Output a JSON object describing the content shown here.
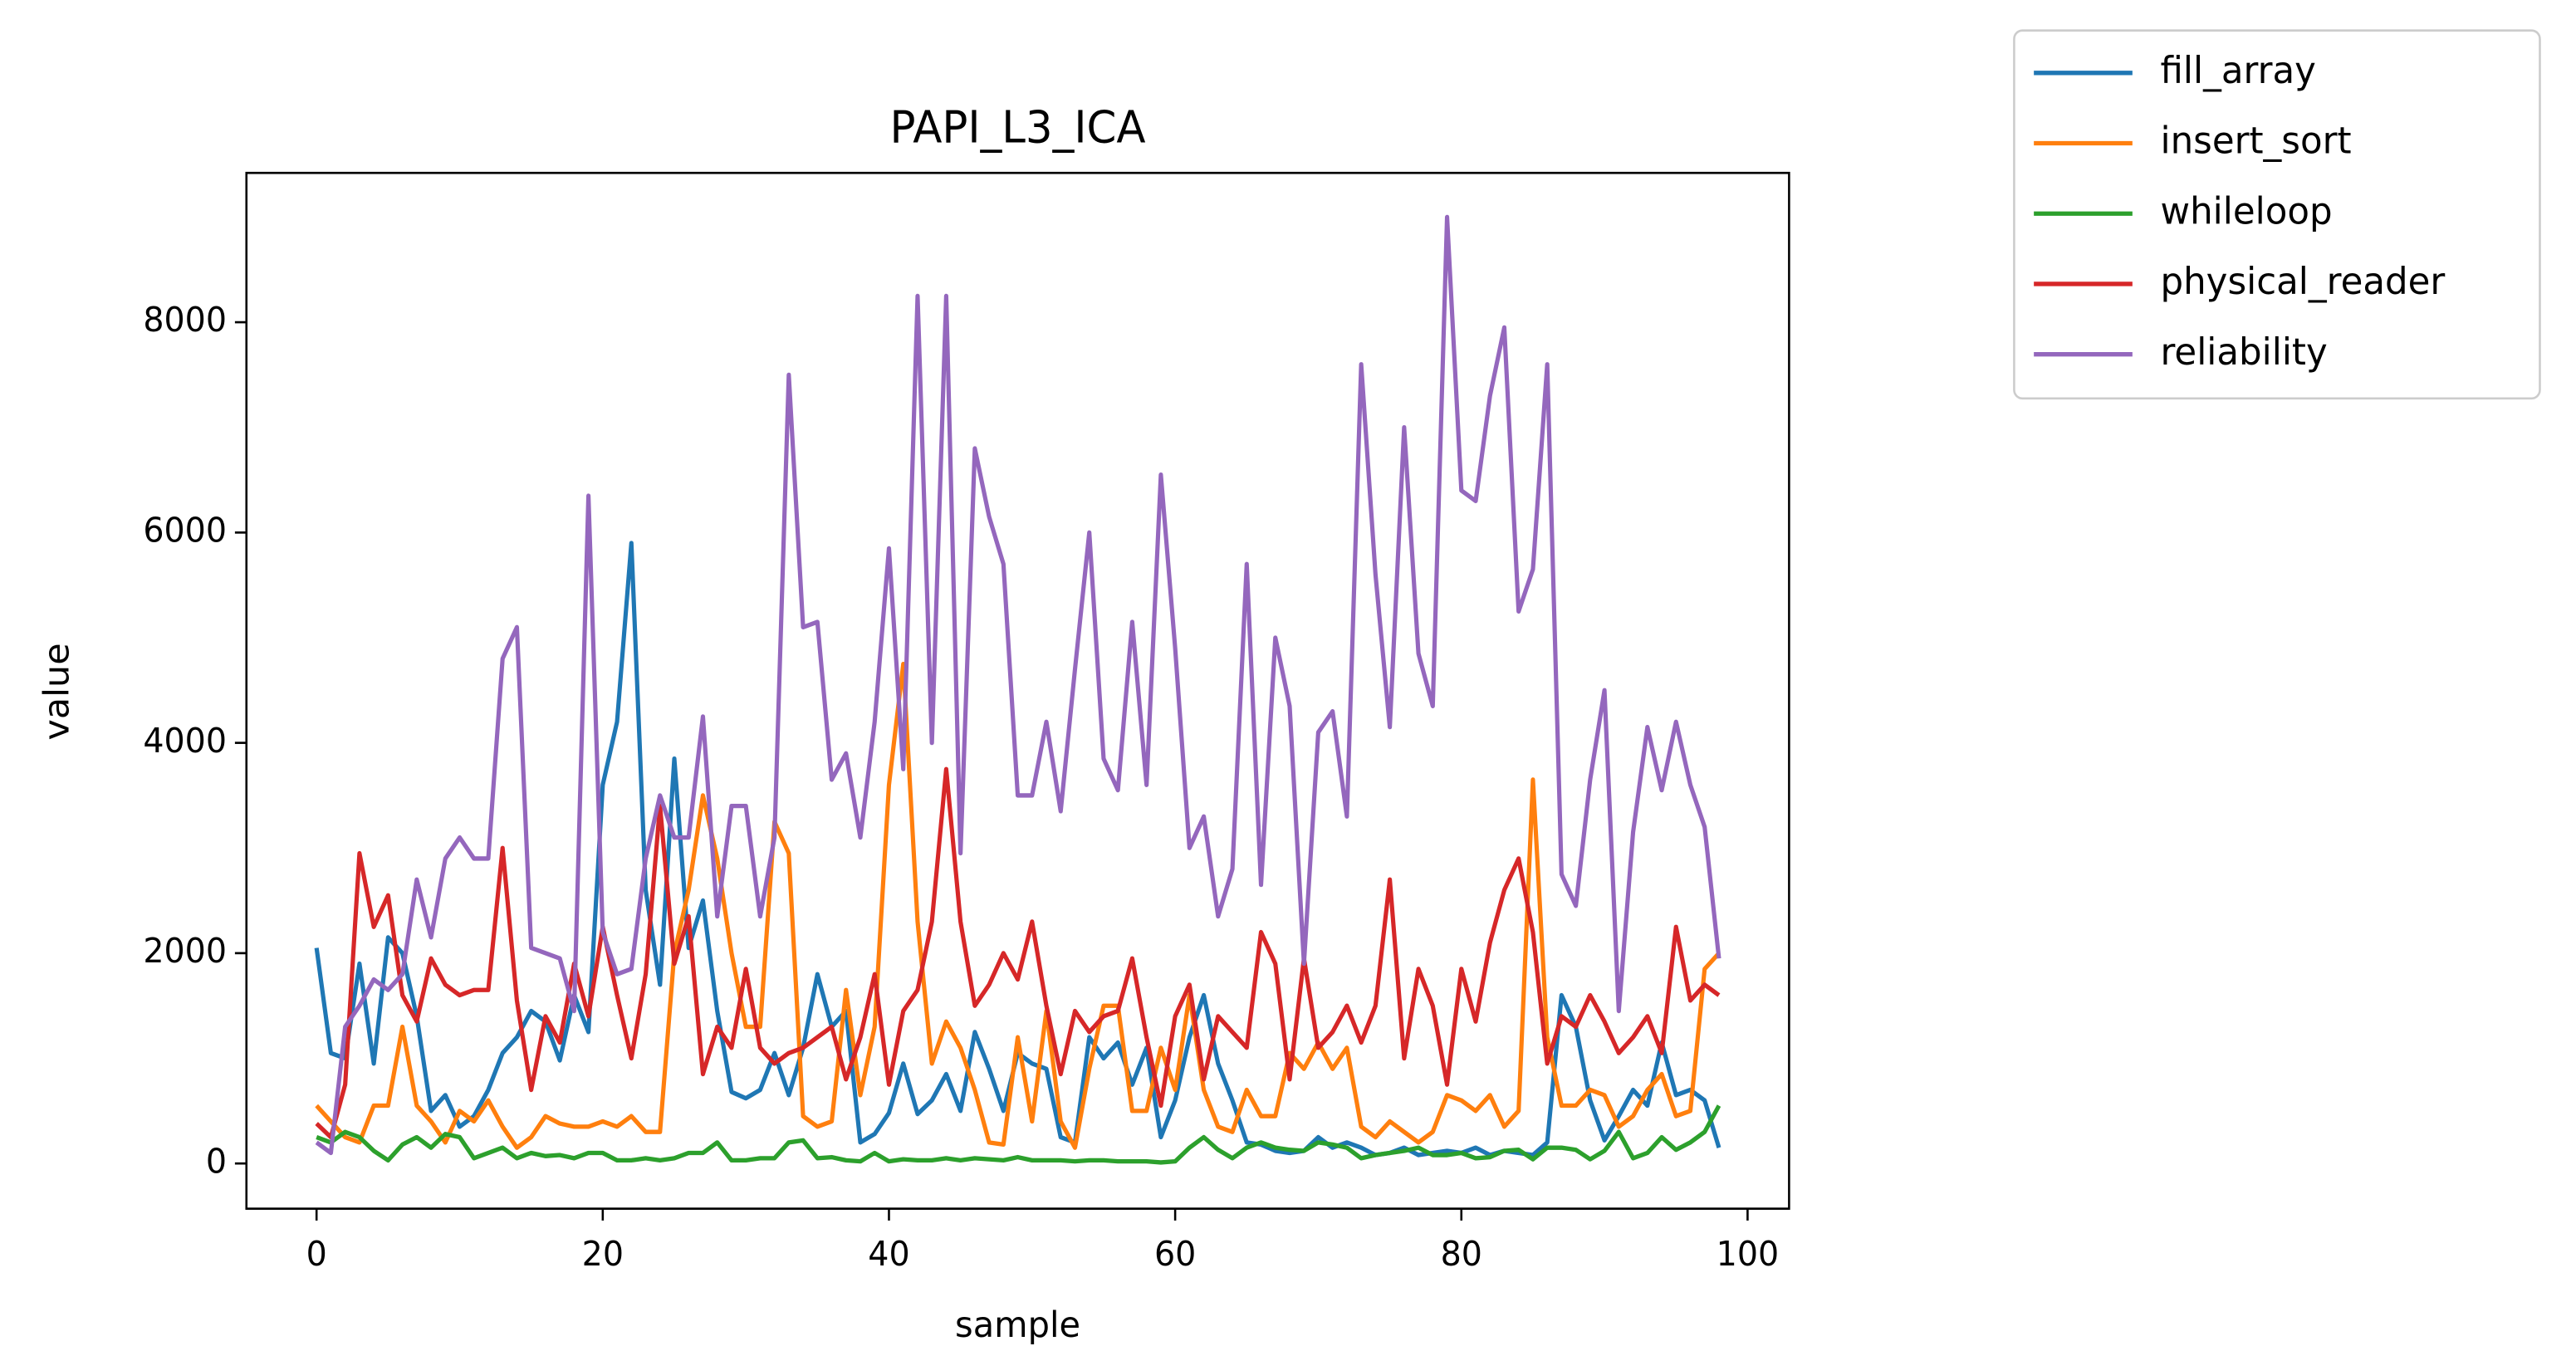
{
  "chart_data": {
    "type": "line",
    "title": "PAPI_L3_ICA",
    "x_label": "sample",
    "y_label": "value",
    "x": [
      0,
      1,
      2,
      3,
      4,
      5,
      6,
      7,
      8,
      9,
      10,
      11,
      12,
      13,
      14,
      15,
      16,
      17,
      18,
      19,
      20,
      21,
      22,
      23,
      24,
      25,
      26,
      27,
      28,
      29,
      30,
      31,
      32,
      33,
      34,
      35,
      36,
      37,
      38,
      39,
      40,
      41,
      42,
      43,
      44,
      45,
      46,
      47,
      48,
      49,
      50,
      51,
      52,
      53,
      54,
      55,
      56,
      57,
      58,
      59,
      60,
      61,
      62,
      63,
      64,
      65,
      66,
      67,
      68,
      69,
      70,
      71,
      72,
      73,
      74,
      75,
      76,
      77,
      78,
      79,
      80,
      81,
      82,
      83,
      84,
      85,
      86,
      87,
      88,
      89,
      90,
      91,
      92,
      93,
      94,
      95,
      96,
      97,
      98
    ],
    "series": [
      {
        "name": "fill_array",
        "color": "#1f77b4",
        "values": [
          2050,
          1050,
          1000,
          1900,
          950,
          2150,
          2000,
          1400,
          500,
          650,
          350,
          450,
          700,
          1050,
          1200,
          1450,
          1350,
          980,
          1600,
          1250,
          3600,
          4200,
          5900,
          2600,
          1700,
          3850,
          2050,
          2500,
          1450,
          680,
          620,
          700,
          1050,
          650,
          1100,
          1800,
          1300,
          1450,
          200,
          280,
          480,
          950,
          470,
          600,
          850,
          500,
          1250,
          900,
          500,
          1050,
          950,
          900,
          250,
          200,
          1200,
          1000,
          1150,
          750,
          1100,
          250,
          600,
          1200,
          1600,
          950,
          600,
          200,
          180,
          120,
          100,
          120,
          250,
          150,
          200,
          150,
          80,
          100,
          150,
          80,
          100,
          120,
          100,
          150,
          80,
          120,
          100,
          80,
          200,
          1600,
          1300,
          600,
          220,
          450,
          700,
          550,
          1150,
          650,
          700,
          600,
          150
        ]
      },
      {
        "name": "insert_sort",
        "color": "#ff7f0e",
        "values": [
          550,
          400,
          250,
          200,
          550,
          550,
          1300,
          550,
          400,
          200,
          500,
          400,
          600,
          350,
          150,
          250,
          450,
          380,
          350,
          350,
          400,
          350,
          450,
          300,
          300,
          2000,
          2600,
          3500,
          2900,
          2000,
          1300,
          1300,
          3250,
          2950,
          450,
          350,
          400,
          1650,
          650,
          1300,
          3600,
          4750,
          2300,
          950,
          1350,
          1100,
          700,
          200,
          180,
          1200,
          400,
          1450,
          400,
          150,
          900,
          1500,
          1500,
          500,
          500,
          1100,
          700,
          1600,
          700,
          350,
          300,
          700,
          450,
          450,
          1050,
          900,
          1150,
          900,
          1100,
          350,
          250,
          400,
          300,
          200,
          300,
          650,
          600,
          500,
          650,
          350,
          500,
          3650,
          1200,
          550,
          550,
          700,
          650,
          350,
          450,
          700,
          850,
          450,
          500,
          1850,
          2000
        ]
      },
      {
        "name": "whileloop",
        "color": "#2ca02c",
        "values": [
          250,
          200,
          300,
          250,
          120,
          30,
          180,
          250,
          150,
          280,
          250,
          50,
          100,
          150,
          50,
          100,
          70,
          80,
          50,
          100,
          100,
          30,
          30,
          50,
          30,
          50,
          100,
          100,
          200,
          30,
          30,
          50,
          50,
          200,
          220,
          50,
          60,
          30,
          20,
          100,
          20,
          40,
          30,
          30,
          50,
          30,
          50,
          40,
          30,
          60,
          30,
          30,
          30,
          20,
          30,
          30,
          20,
          20,
          20,
          10,
          20,
          150,
          250,
          130,
          50,
          150,
          200,
          150,
          130,
          120,
          200,
          180,
          150,
          50,
          80,
          100,
          120,
          150,
          80,
          80,
          100,
          50,
          60,
          120,
          130,
          40,
          150,
          150,
          130,
          40,
          120,
          300,
          50,
          100,
          250,
          130,
          200,
          300,
          550
        ]
      },
      {
        "name": "physical_reader",
        "color": "#d62728",
        "values": [
          380,
          250,
          750,
          2950,
          2250,
          2550,
          1600,
          1350,
          1950,
          1700,
          1600,
          1650,
          1650,
          3000,
          1550,
          700,
          1400,
          1150,
          1900,
          1400,
          2250,
          1600,
          1000,
          1800,
          3400,
          1900,
          2350,
          850,
          1300,
          1100,
          1850,
          1100,
          950,
          1050,
          1100,
          1200,
          1300,
          800,
          1200,
          1800,
          750,
          1450,
          1650,
          2300,
          3750,
          2300,
          1500,
          1700,
          2000,
          1750,
          2300,
          1500,
          850,
          1450,
          1250,
          1400,
          1450,
          1950,
          1200,
          550,
          1400,
          1700,
          800,
          1400,
          1250,
          1100,
          2200,
          1900,
          800,
          1950,
          1100,
          1250,
          1500,
          1150,
          1500,
          2700,
          1000,
          1850,
          1500,
          750,
          1850,
          1350,
          2100,
          2600,
          2900,
          2200,
          950,
          1400,
          1300,
          1600,
          1350,
          1050,
          1200,
          1400,
          1050,
          2250,
          1550,
          1700,
          1600
        ]
      },
      {
        "name": "reliability",
        "color": "#9467bd",
        "values": [
          200,
          100,
          1300,
          1500,
          1750,
          1650,
          1800,
          2700,
          2150,
          2900,
          3100,
          2900,
          2900,
          4800,
          5100,
          2050,
          2000,
          1950,
          1450,
          6350,
          2200,
          1800,
          1850,
          2900,
          3500,
          3100,
          3100,
          4250,
          2350,
          3400,
          3400,
          2350,
          3100,
          7500,
          5100,
          5150,
          3650,
          3900,
          3100,
          4200,
          5850,
          3750,
          8250,
          4000,
          8250,
          2950,
          6800,
          6150,
          5700,
          3500,
          3500,
          4200,
          3350,
          4700,
          6000,
          3850,
          3550,
          5150,
          3600,
          6550,
          4900,
          3000,
          3300,
          2350,
          2800,
          5700,
          2650,
          5000,
          4350,
          1900,
          4100,
          4300,
          3300,
          7600,
          5600,
          4150,
          7000,
          4850,
          4350,
          9000,
          6400,
          6300,
          7300,
          7950,
          5250,
          5650,
          7600,
          2750,
          2450,
          3650,
          4500,
          1450,
          3150,
          4150,
          3550,
          4200,
          3600,
          3200,
          1950
        ]
      }
    ],
    "xlim": [
      -4.9,
      102.9
    ],
    "ylim": [
      -430,
      9420
    ],
    "xticks": [
      0,
      20,
      40,
      60,
      80,
      100
    ],
    "yticks": [
      0,
      2000,
      4000,
      6000,
      8000
    ],
    "grid": false,
    "legend": "outside upper right"
  }
}
